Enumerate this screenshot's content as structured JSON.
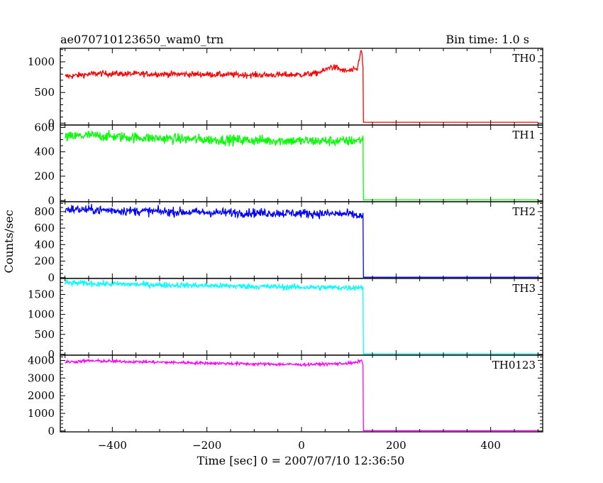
{
  "header": {
    "title": "ae070710123650_wam0_trn",
    "bin_time": "Bin time: 1.0 s"
  },
  "axes": {
    "xlabel": "Time [sec] 0 = 2007/07/10 12:36:50",
    "ylabel": "Counts/sec",
    "xlim": [
      -510,
      510
    ],
    "xticks_major": [
      -400,
      -200,
      0,
      200,
      400
    ],
    "xtick_labels": [
      "−400",
      "−200",
      "0",
      "200",
      "400"
    ],
    "xticks_minor_step": 50
  },
  "chart_data": {
    "type": "line",
    "burst_end_time": 130,
    "series": [
      {
        "name": "TH0",
        "color": "#ff0000",
        "ylim": [
          -30,
          1220
        ],
        "yticks": [
          0,
          500,
          1000
        ],
        "ytick_labels": [
          "0",
          "500",
          "1000"
        ],
        "yminor_step": 100,
        "noise": 40,
        "after_level": 15,
        "profile": [
          [
            -500,
            760
          ],
          [
            -460,
            790
          ],
          [
            -430,
            810
          ],
          [
            -380,
            805
          ],
          [
            -300,
            800
          ],
          [
            -200,
            795
          ],
          [
            -100,
            785
          ],
          [
            0,
            790
          ],
          [
            30,
            810
          ],
          [
            50,
            860
          ],
          [
            60,
            920
          ],
          [
            75,
            900
          ],
          [
            90,
            850
          ],
          [
            110,
            860
          ],
          [
            118,
            880
          ],
          [
            122,
            1040
          ],
          [
            124,
            1150
          ],
          [
            126,
            1180
          ],
          [
            128,
            1100
          ],
          [
            130,
            900
          ]
        ]
      },
      {
        "name": "TH1",
        "color": "#00ff00",
        "ylim": [
          -10,
          620
        ],
        "yticks": [
          0,
          200,
          400,
          600
        ],
        "ytick_labels": [
          "0",
          "200",
          "400",
          "600"
        ],
        "yminor_step": 50,
        "noise": 35,
        "after_level": 5,
        "profile": [
          [
            -500,
            520
          ],
          [
            -450,
            535
          ],
          [
            -400,
            525
          ],
          [
            -300,
            510
          ],
          [
            -200,
            500
          ],
          [
            -100,
            495
          ],
          [
            0,
            490
          ],
          [
            100,
            488
          ],
          [
            130,
            500
          ]
        ]
      },
      {
        "name": "TH2",
        "color": "#0000ff",
        "ylim": [
          -10,
          920
        ],
        "yticks": [
          0,
          200,
          400,
          600,
          800
        ],
        "ytick_labels": [
          "0",
          "200",
          "400",
          "600",
          "800"
        ],
        "yminor_step": 50,
        "noise": 45,
        "after_level": 5,
        "profile": [
          [
            -500,
            830
          ],
          [
            -400,
            815
          ],
          [
            -300,
            800
          ],
          [
            -200,
            790
          ],
          [
            -100,
            785
          ],
          [
            0,
            780
          ],
          [
            100,
            770
          ],
          [
            130,
            740
          ]
        ]
      },
      {
        "name": "TH3",
        "color": "#00ffff",
        "ylim": [
          -20,
          1900
        ],
        "yticks": [
          0,
          500,
          1000,
          1500
        ],
        "ytick_labels": [
          "0",
          "500",
          "1000",
          "1500"
        ],
        "yminor_step": 100,
        "noise": 60,
        "after_level": 10,
        "profile": [
          [
            -500,
            1790
          ],
          [
            -400,
            1760
          ],
          [
            -300,
            1740
          ],
          [
            -200,
            1720
          ],
          [
            -100,
            1700
          ],
          [
            0,
            1680
          ],
          [
            100,
            1670
          ],
          [
            130,
            1680
          ]
        ]
      },
      {
        "name": "TH0123",
        "color": "#ff00ff",
        "ylim": [
          -50,
          4300
        ],
        "yticks": [
          0,
          1000,
          2000,
          3000,
          4000
        ],
        "ytick_labels": [
          "0",
          "1000",
          "2000",
          "3000",
          "4000"
        ],
        "yminor_step": 200,
        "noise": 70,
        "after_level": 20,
        "profile": [
          [
            -500,
            3900
          ],
          [
            -450,
            3980
          ],
          [
            -400,
            3950
          ],
          [
            -300,
            3900
          ],
          [
            -200,
            3850
          ],
          [
            -100,
            3800
          ],
          [
            0,
            3770
          ],
          [
            60,
            3800
          ],
          [
            110,
            3850
          ],
          [
            124,
            3950
          ],
          [
            126,
            4100
          ],
          [
            128,
            3950
          ],
          [
            130,
            3700
          ]
        ]
      }
    ]
  }
}
